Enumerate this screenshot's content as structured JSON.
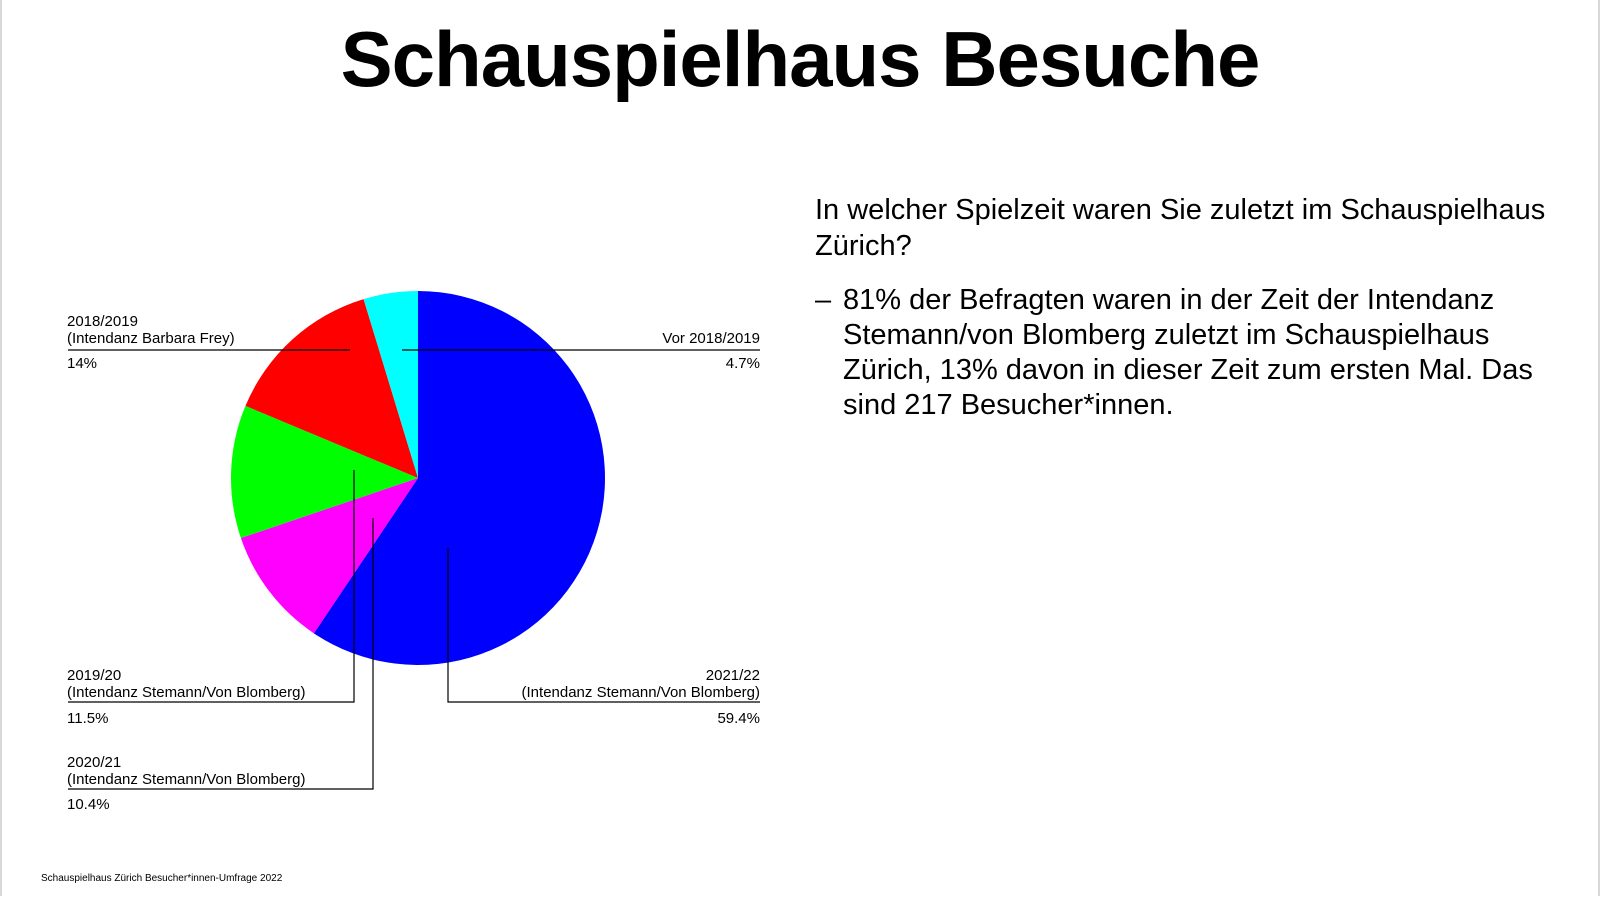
{
  "title": "Schauspielhaus Besuche",
  "question": "In welcher Spielzeit waren Sie zuletzt im Schauspielhaus Zürich?",
  "finding": {
    "bullet": "–",
    "text": "81% der Befragten waren in der Zeit der Intendanz Stemann/von Blomberg zuletzt im Schauspielhaus Zürich, 13% davon in dieser Zeit zum ersten Mal. Das sind 217 Besucher*innen."
  },
  "footer": "Schauspielhaus Zürich Besucher*innen-Umfrage 2022",
  "chart_data": {
    "type": "pie",
    "start": "12 o'clock",
    "direction": "clockwise",
    "legend": "none (callout labels)",
    "slices": [
      {
        "id": "2021-22",
        "lines": [
          "2021/22",
          "(Intendanz Stemann/Von Blomberg)"
        ],
        "value": 59.4,
        "value_label": "59.4%",
        "color": "#0000ff"
      },
      {
        "id": "2020-21",
        "lines": [
          "2020/21",
          "(Intendanz Stemann/Von Blomberg)"
        ],
        "value": 10.4,
        "value_label": "10.4%",
        "color": "#ff00ff"
      },
      {
        "id": "2019-20",
        "lines": [
          "2019/20",
          "(Intendanz Stemann/Von Blomberg)"
        ],
        "value": 11.5,
        "value_label": "11.5%",
        "color": "#00ff00"
      },
      {
        "id": "2018-2019",
        "lines": [
          "2018/2019",
          "(Intendanz Barbara Frey)"
        ],
        "value": 14,
        "value_label": "14%",
        "color": "#ff0000"
      },
      {
        "id": "vor-2018-2019",
        "lines": [
          "Vor 2018/2019"
        ],
        "value": 4.7,
        "value_label": "4.7%",
        "color": "#00ffff"
      }
    ]
  }
}
